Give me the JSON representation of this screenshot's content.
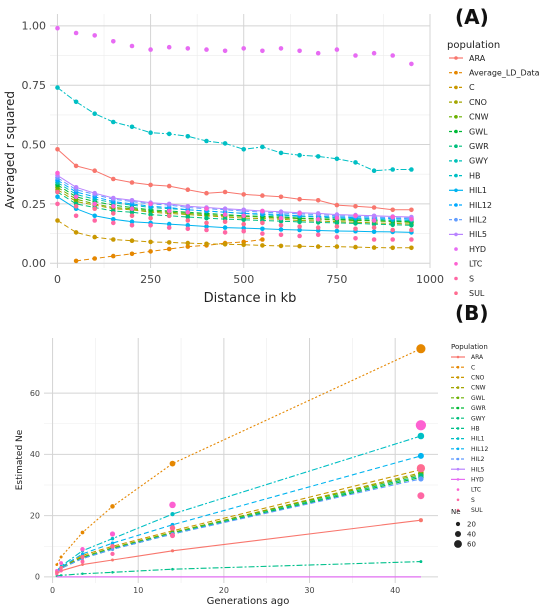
{
  "chart_data": [
    {
      "panel_label": "(A)",
      "type": "line",
      "title": "",
      "xlabel": "Distance in kb",
      "ylabel": "Averaged r squared",
      "xlim": [
        -20,
        1000
      ],
      "ylim": [
        -0.02,
        1.05
      ],
      "xticks": [
        0,
        250,
        500,
        750,
        1000
      ],
      "yticks": [
        0.0,
        0.25,
        0.5,
        0.75,
        1.0
      ],
      "xtick_labels": [
        "0",
        "250",
        "500",
        "750",
        "1000"
      ],
      "ytick_labels": [
        "0.00",
        "0.25",
        "0.50",
        "0.75",
        "1.00"
      ],
      "grid": true,
      "legend": {
        "title": "population",
        "placement": "right"
      },
      "x": [
        0,
        50,
        100,
        150,
        200,
        250,
        300,
        350,
        400,
        450,
        500,
        550,
        600,
        650,
        700,
        750,
        800,
        850,
        900,
        950
      ],
      "series": [
        {
          "name": "ARA",
          "color": "#F8766D",
          "style": "solid",
          "points": true,
          "values": [
            0.48,
            0.41,
            0.39,
            0.355,
            0.34,
            0.33,
            0.325,
            0.31,
            0.295,
            0.3,
            0.29,
            0.285,
            0.28,
            0.27,
            0.265,
            0.245,
            0.24,
            0.235,
            0.225,
            0.225
          ]
        },
        {
          "name": "Average_LD_Data",
          "color": "#E58700",
          "style": "dashed",
          "points": true,
          "values": [
            null,
            0.01,
            0.02,
            0.03,
            0.04,
            0.05,
            0.06,
            0.07,
            0.075,
            0.085,
            0.09,
            0.1,
            null,
            null,
            null,
            null,
            null,
            null,
            null,
            null
          ]
        },
        {
          "name": "C",
          "color": "#C99800",
          "style": "dashed",
          "points": true,
          "values": [
            0.18,
            0.13,
            0.11,
            0.1,
            0.095,
            0.09,
            0.088,
            0.085,
            0.082,
            0.08,
            0.078,
            0.075,
            0.073,
            0.072,
            0.07,
            0.07,
            0.068,
            0.066,
            0.065,
            0.065
          ]
        },
        {
          "name": "CNO",
          "color": "#A3A500",
          "style": "dashed",
          "points": true,
          "values": [
            0.31,
            0.26,
            0.245,
            0.23,
            0.225,
            0.215,
            0.21,
            0.205,
            0.2,
            0.195,
            0.19,
            0.188,
            0.185,
            0.18,
            0.178,
            0.175,
            0.173,
            0.17,
            0.168,
            0.165
          ]
        },
        {
          "name": "CNW",
          "color": "#6BB100",
          "style": "dashed",
          "points": true,
          "values": [
            0.32,
            0.27,
            0.25,
            0.235,
            0.23,
            0.22,
            0.215,
            0.21,
            0.205,
            0.2,
            0.198,
            0.195,
            0.19,
            0.188,
            0.185,
            0.182,
            0.18,
            0.178,
            0.175,
            0.172
          ]
        },
        {
          "name": "GWL",
          "color": "#00BA38",
          "style": "dashed",
          "points": true,
          "values": [
            0.33,
            0.28,
            0.26,
            0.245,
            0.235,
            0.225,
            0.22,
            0.215,
            0.21,
            0.205,
            0.2,
            0.198,
            0.195,
            0.19,
            0.188,
            0.185,
            0.183,
            0.18,
            0.178,
            0.175
          ]
        },
        {
          "name": "GWR",
          "color": "#00BF7D",
          "style": "dashed",
          "points": true,
          "values": [
            0.3,
            0.25,
            0.235,
            0.22,
            0.215,
            0.205,
            0.2,
            0.195,
            0.19,
            0.186,
            0.183,
            0.18,
            0.177,
            0.174,
            0.172,
            0.17,
            0.168,
            0.165,
            0.162,
            0.16
          ]
        },
        {
          "name": "GWY",
          "color": "#00C0B8",
          "style": "dashed",
          "points": true,
          "values": [
            0.34,
            0.29,
            0.27,
            0.255,
            0.245,
            0.235,
            0.23,
            0.225,
            0.22,
            0.215,
            0.21,
            0.205,
            0.2,
            0.198,
            0.195,
            0.19,
            0.188,
            0.185,
            0.182,
            0.18
          ]
        },
        {
          "name": "HB",
          "color": "#00BFC4",
          "style": "dashdot",
          "points": true,
          "values": [
            0.74,
            0.68,
            0.63,
            0.595,
            0.575,
            0.55,
            0.545,
            0.535,
            0.515,
            0.505,
            0.48,
            0.49,
            0.465,
            0.455,
            0.45,
            0.44,
            0.425,
            0.39,
            0.395,
            0.395
          ]
        },
        {
          "name": "HIL1",
          "color": "#00B4F0",
          "style": "solid",
          "points": true,
          "values": [
            0.28,
            0.23,
            0.2,
            0.185,
            0.175,
            0.17,
            0.165,
            0.16,
            0.155,
            0.15,
            0.148,
            0.145,
            0.142,
            0.14,
            0.138,
            0.136,
            0.135,
            0.133,
            0.132,
            0.13
          ]
        },
        {
          "name": "HIL12",
          "color": "#00A9FF",
          "style": "dashed",
          "points": true,
          "values": [
            0.35,
            0.3,
            0.28,
            0.26,
            0.25,
            0.24,
            0.235,
            0.225,
            0.22,
            0.215,
            0.21,
            0.208,
            0.205,
            0.2,
            0.198,
            0.195,
            0.192,
            0.19,
            0.188,
            0.185
          ]
        },
        {
          "name": "HIL2",
          "color": "#619CFF",
          "style": "dashed",
          "points": true,
          "values": [
            0.36,
            0.31,
            0.29,
            0.27,
            0.26,
            0.25,
            0.245,
            0.235,
            0.23,
            0.225,
            0.22,
            0.215,
            0.212,
            0.208,
            0.205,
            0.2,
            0.198,
            0.195,
            0.192,
            0.19
          ]
        },
        {
          "name": "HIL5",
          "color": "#B983FF",
          "style": "solid",
          "points": true,
          "values": [
            0.37,
            0.32,
            0.295,
            0.275,
            0.265,
            0.255,
            0.25,
            0.24,
            0.235,
            0.23,
            0.225,
            0.22,
            0.217,
            0.213,
            0.21,
            0.205,
            0.203,
            0.2,
            0.197,
            0.195
          ]
        },
        {
          "name": "HYD",
          "color": "#E76BF3",
          "style": "none",
          "points": true,
          "values": [
            0.99,
            0.97,
            0.96,
            0.935,
            0.915,
            0.9,
            0.91,
            0.905,
            0.9,
            0.895,
            0.905,
            0.895,
            0.905,
            0.895,
            0.885,
            0.9,
            0.875,
            0.885,
            0.875,
            0.84
          ]
        },
        {
          "name": "LTC",
          "color": "#FD61D1",
          "style": "none",
          "points": true,
          "values": [
            0.38,
            0.28,
            0.25,
            0.24,
            0.23,
            0.25,
            0.22,
            0.215,
            0.23,
            0.205,
            0.2,
            0.22,
            0.19,
            0.21,
            0.185,
            0.19,
            0.2,
            0.18,
            0.195,
            0.185
          ]
        },
        {
          "name": "S",
          "color": "#FF67A4",
          "style": "none",
          "points": true,
          "values": [
            0.25,
            0.2,
            0.18,
            0.17,
            0.16,
            0.16,
            0.15,
            0.145,
            0.14,
            0.13,
            0.135,
            0.125,
            0.12,
            0.115,
            0.12,
            0.11,
            0.105,
            0.1,
            0.1,
            0.1
          ]
        },
        {
          "name": "SUL",
          "color": "#FF6C91",
          "style": "none",
          "points": true,
          "values": [
            0.3,
            0.24,
            0.23,
            0.21,
            0.2,
            0.19,
            0.2,
            0.18,
            0.17,
            0.175,
            0.165,
            0.17,
            0.16,
            0.155,
            0.15,
            0.155,
            0.145,
            0.15,
            0.14,
            0.14
          ]
        }
      ]
    },
    {
      "panel_label": "(B)",
      "type": "line",
      "title": "",
      "xlabel": "Generations ago",
      "ylabel": "Estimated Ne",
      "xlim": [
        -1,
        45
      ],
      "ylim": [
        -2,
        78
      ],
      "xticks": [
        0,
        10,
        20,
        30,
        40
      ],
      "yticks": [
        0,
        20,
        40,
        60
      ],
      "xtick_labels": [
        "0",
        "10",
        "20",
        "30",
        "40"
      ],
      "ytick_labels": [
        "0",
        "20",
        "40",
        "60"
      ],
      "grid": true,
      "legend": {
        "title": "Population",
        "placement": "right"
      },
      "size_legend": {
        "title": "Ne",
        "labels": [
          "20",
          "40",
          "60"
        ]
      },
      "x": [
        0.5,
        1,
        3.5,
        7,
        14,
        43
      ],
      "series": [
        {
          "name": "ARA",
          "color": "#F8766D",
          "style": "solid",
          "values": [
            1.0,
            2.0,
            4.0,
            5.5,
            8.5,
            18.5
          ]
        },
        {
          "name": "C",
          "color": "#E58700",
          "style": "dotted",
          "values": [
            4.0,
            6.5,
            14.5,
            23.0,
            37.0,
            74.5
          ]
        },
        {
          "name": "CNO",
          "color": "#C99800",
          "style": "dashed",
          "values": [
            1.5,
            3.0,
            7.0,
            10.0,
            15.0,
            35.0
          ]
        },
        {
          "name": "CNW",
          "color": "#A3A500",
          "style": "dashed",
          "values": [
            1.5,
            3.0,
            6.5,
            9.5,
            14.5,
            34.0
          ]
        },
        {
          "name": "GWL",
          "color": "#6BB100",
          "style": "dashed",
          "values": [
            1.5,
            2.8,
            6.5,
            9.5,
            14.5,
            33.5
          ]
        },
        {
          "name": "GWR",
          "color": "#00BA38",
          "style": "dashed",
          "values": [
            1.5,
            2.8,
            6.0,
            9.0,
            14.0,
            32.5
          ]
        },
        {
          "name": "GWY",
          "color": "#00BF7D",
          "style": "dashed",
          "values": [
            1.5,
            2.8,
            6.2,
            9.2,
            14.2,
            33.0
          ]
        },
        {
          "name": "HB",
          "color": "#00C08B",
          "style": "dashdot",
          "values": [
            0.3,
            0.5,
            1.0,
            1.5,
            2.5,
            5.0
          ]
        },
        {
          "name": "HIL1",
          "color": "#00BFC4",
          "style": "dashdot",
          "values": [
            2.0,
            3.5,
            8.5,
            12.5,
            20.5,
            46.0
          ]
        },
        {
          "name": "HIL12",
          "color": "#00B4F0",
          "style": "dashed",
          "values": [
            1.8,
            3.2,
            7.5,
            11.0,
            17.0,
            39.5
          ]
        },
        {
          "name": "HIL2",
          "color": "#619CFF",
          "style": "dashed",
          "values": [
            1.5,
            2.8,
            6.0,
            9.0,
            14.0,
            32.0
          ]
        },
        {
          "name": "HIL5",
          "color": "#B983FF",
          "style": "solid",
          "values": [
            0,
            0,
            0,
            0,
            0,
            0
          ]
        },
        {
          "name": "HYD",
          "color": "#E76BF3",
          "style": "solid",
          "values": [
            0,
            0,
            0,
            0,
            0,
            0
          ]
        },
        {
          "name": "LTC",
          "color": "#FD61D1",
          "style": "points",
          "values": [
            2.0,
            4.5,
            9.0,
            14.0,
            23.5,
            49.5
          ]
        },
        {
          "name": "S",
          "color": "#FF67A4",
          "style": "points",
          "values": [
            1.0,
            2.0,
            5.0,
            7.5,
            13.5,
            26.5
          ]
        },
        {
          "name": "SUL",
          "color": "#FF6C91",
          "style": "points",
          "values": [
            1.5,
            3.0,
            6.5,
            10.0,
            16.0,
            35.5
          ]
        }
      ]
    }
  ]
}
